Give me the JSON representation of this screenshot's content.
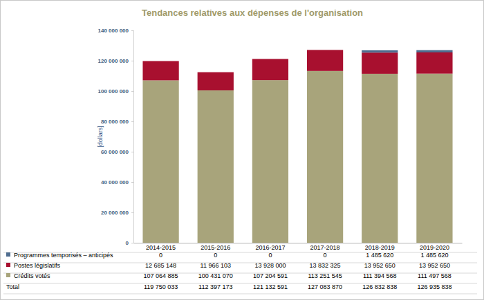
{
  "chart_data": {
    "type": "bar",
    "title": "Tendances relatives aux dépenses de l'organisation",
    "y_label": "[dollars]",
    "stacked": true,
    "grid": false,
    "categories": [
      "2014-2015",
      "2015-2016",
      "2016-2017",
      "2017-2018",
      "2018-2019",
      "2019-2020"
    ],
    "series": [
      {
        "name": "Programmes temporisés – anticipés",
        "color": "#4f6d8f",
        "values": [
          0,
          0,
          0,
          0,
          1485620,
          1485620
        ],
        "value_labels": [
          "0",
          "0",
          "0",
          "0",
          "1 485 620",
          "1 485 620"
        ]
      },
      {
        "name": "Postes législatifs",
        "color": "#a8102f",
        "values": [
          12685148,
          11966103,
          13928000,
          13832325,
          13952650,
          13952650
        ],
        "value_labels": [
          "12 685 148",
          "11 966 103",
          "13 928 000",
          "13 832 325",
          "13 952 650",
          "13 952 650"
        ]
      },
      {
        "name": "Crédits votés",
        "color": "#a8a47b",
        "values": [
          107064885,
          100431070,
          107204591,
          113251545,
          111394568,
          111497568
        ],
        "value_labels": [
          "107 064 885",
          "100 431 070",
          "107 204 591",
          "113 251 545",
          "111 394 568",
          "111 497 568"
        ]
      }
    ],
    "total": {
      "name": "Total",
      "values": [
        119750033,
        112397173,
        121132591,
        127083870,
        126832838,
        126935838
      ],
      "value_labels": [
        "119 750 033",
        "112 397 173",
        "121 132 591",
        "127 083 870",
        "126 832 838",
        "126 935 838"
      ]
    },
    "ylim": [
      0,
      140000000
    ],
    "yticks": [
      0,
      {
        "value": 20000000,
        "label": "20 000 000"
      },
      {
        "value": 40000000,
        "label": "40 000 000"
      },
      {
        "value": 60000000,
        "label": "60 000 000"
      },
      {
        "value": 80000000,
        "label": "80 000 000"
      },
      {
        "value": 100000000,
        "label": "100 000 000"
      },
      {
        "value": 120000000,
        "label": "120 000 000"
      },
      {
        "value": 140000000,
        "label": "140 000 000"
      }
    ]
  }
}
